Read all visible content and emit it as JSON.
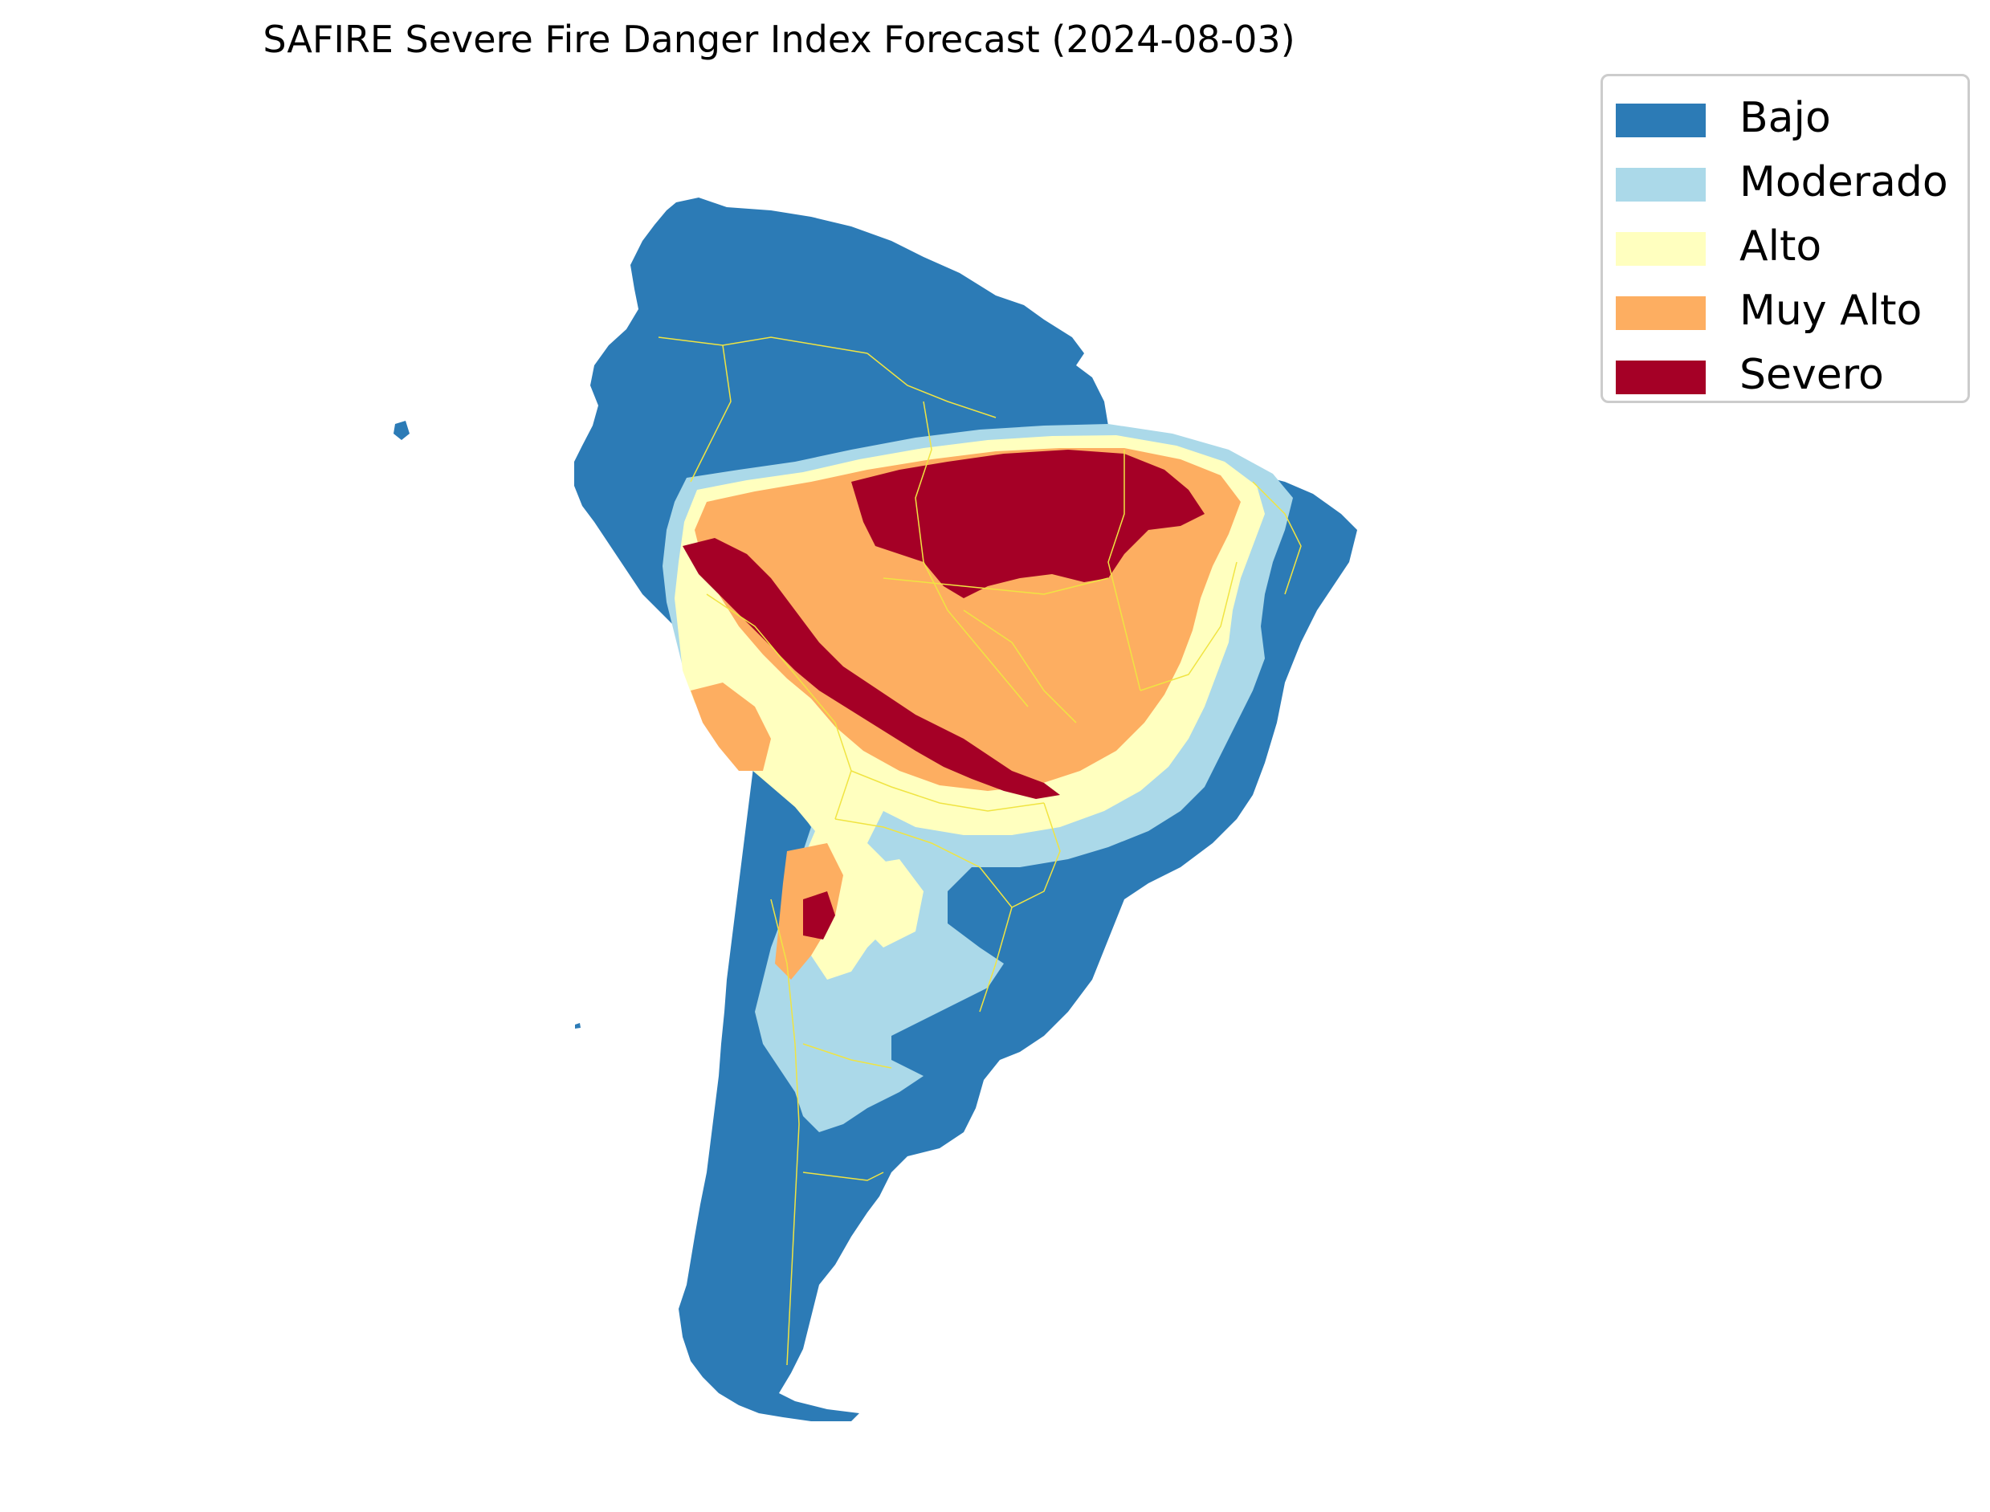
{
  "title": "SAFIRE Severe Fire Danger Index Forecast (2024-08-03)",
  "map": {
    "region": "South America",
    "boundary_color": "#f0e442",
    "background": "#ffffff"
  },
  "legend": {
    "placement": "upper-right outside map",
    "items": [
      {
        "label": "Bajo",
        "color": "#2c7bb6"
      },
      {
        "label": "Moderado",
        "color": "#abd9e9"
      },
      {
        "label": "Alto",
        "color": "#ffffbf"
      },
      {
        "label": "Muy Alto",
        "color": "#fdae61"
      },
      {
        "label": "Severo",
        "color": "#a50026"
      }
    ]
  }
}
